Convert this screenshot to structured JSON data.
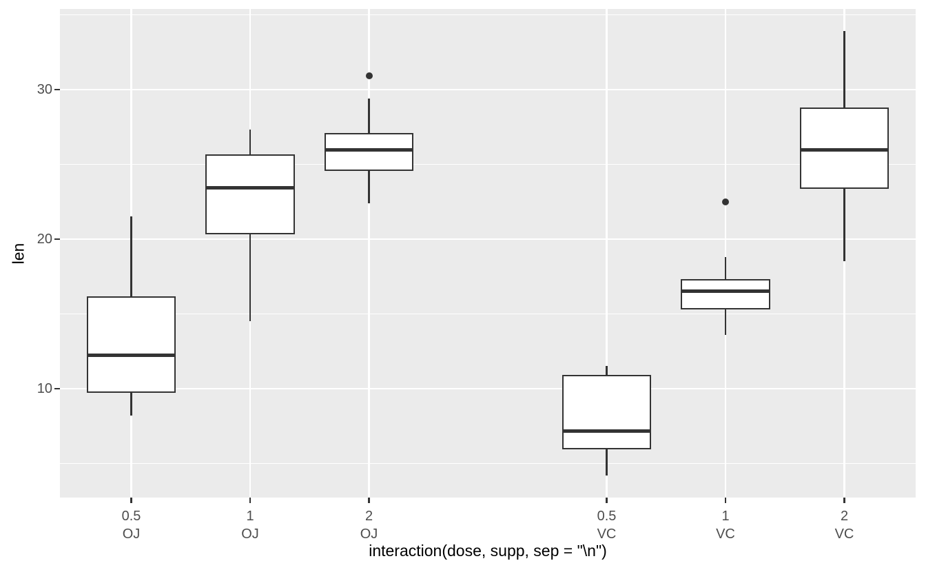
{
  "chart_data": {
    "type": "boxplot",
    "title": "",
    "xlabel": "interaction(dose, supp, sep = \"\\n\")",
    "ylabel": "len",
    "ylim": [
      2.715,
      35.385
    ],
    "y_major_ticks": [
      10,
      20,
      30
    ],
    "y_minor_ticks": [
      5,
      15,
      25,
      35
    ],
    "x_slot_domain": [
      0.4,
      7.6
    ],
    "box_width_slots": 0.75,
    "legend": "none",
    "grid": "on",
    "groups": [
      {
        "dose": "0.5",
        "supp": "OJ",
        "slot": 1,
        "min": 8.2,
        "q1": 9.7,
        "median": 12.25,
        "q3": 16.175,
        "max": 21.5,
        "outliers": []
      },
      {
        "dose": "1",
        "supp": "OJ",
        "slot": 2,
        "min": 14.5,
        "q1": 20.3,
        "median": 23.45,
        "q3": 25.65,
        "max": 27.3,
        "outliers": []
      },
      {
        "dose": "2",
        "supp": "OJ",
        "slot": 3,
        "min": 22.4,
        "q1": 24.575,
        "median": 25.95,
        "q3": 27.075,
        "max": 29.4,
        "outliers": [
          30.9
        ]
      },
      {
        "dose": "0.5",
        "supp": "VC",
        "slot": 5,
        "min": 4.2,
        "q1": 5.95,
        "median": 7.15,
        "q3": 10.9,
        "max": 11.5,
        "outliers": []
      },
      {
        "dose": "1",
        "supp": "VC",
        "slot": 6,
        "min": 13.6,
        "q1": 15.275,
        "median": 16.5,
        "q3": 17.3,
        "max": 18.8,
        "outliers": [
          22.5
        ]
      },
      {
        "dose": "2",
        "supp": "VC",
        "slot": 7,
        "min": 18.5,
        "q1": 23.375,
        "median": 25.95,
        "q3": 28.8,
        "max": 33.9,
        "outliers": []
      }
    ],
    "colors": {
      "panel_background": "#EBEBEB",
      "gridline": "#FFFFFF",
      "box_stroke": "#333333",
      "box_fill": "#FFFFFF",
      "outlier_fill": "#333333",
      "tick_mark": "#333333",
      "tick_label_text": "#4D4D4D",
      "axis_title_text": "#000000"
    }
  }
}
